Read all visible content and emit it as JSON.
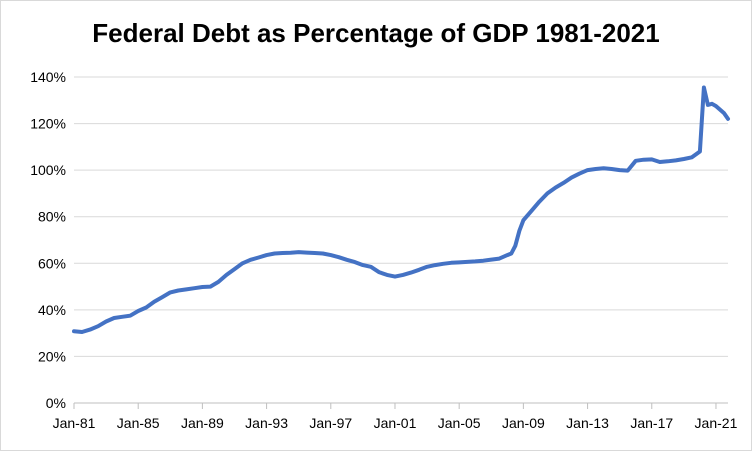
{
  "chart_data": {
    "type": "line",
    "title": "Federal Debt as Percentage of GDP 1981-2021",
    "xlabel": "",
    "ylabel": "",
    "x_tick_labels": [
      "Jan-81",
      "Jan-85",
      "Jan-89",
      "Jan-93",
      "Jan-97",
      "Jan-01",
      "Jan-05",
      "Jan-09",
      "Jan-13",
      "Jan-17",
      "Jan-21"
    ],
    "y_tick_labels": [
      "0%",
      "20%",
      "40%",
      "60%",
      "80%",
      "100%",
      "120%",
      "140%"
    ],
    "ylim": [
      0,
      140
    ],
    "y_ticks": [
      0,
      20,
      40,
      60,
      80,
      100,
      120,
      140
    ],
    "xlim": [
      1981.0,
      2021.75
    ],
    "x_ticks": [
      1981,
      1985,
      1989,
      1993,
      1997,
      2001,
      2005,
      2009,
      2013,
      2017,
      2021
    ],
    "grid": "horizontal",
    "legend": "none",
    "colors": {
      "line": "#4472c4",
      "grid": "#d9d9d9",
      "axis": "#bfbfbf"
    },
    "series": [
      {
        "x": [
          1981.0,
          1981.5,
          1982.0,
          1982.5,
          1983.0,
          1983.5,
          1984.0,
          1984.5,
          1985.0,
          1985.5,
          1986.0,
          1986.5,
          1987.0,
          1987.5,
          1988.0,
          1988.5,
          1989.0,
          1989.5,
          1990.0,
          1990.5,
          1991.0,
          1991.5,
          1992.0,
          1992.5,
          1993.0,
          1993.5,
          1994.0,
          1994.5,
          1995.0,
          1995.5,
          1996.0,
          1996.5,
          1997.0,
          1997.5,
          1998.0,
          1998.5,
          1999.0,
          1999.5,
          2000.0,
          2000.5,
          2001.0,
          2001.5,
          2002.0,
          2002.5,
          2003.0,
          2003.5,
          2004.0,
          2004.5,
          2005.0,
          2005.5,
          2006.0,
          2006.5,
          2007.0,
          2007.5,
          2008.0,
          2008.25,
          2008.5,
          2008.75,
          2009.0,
          2009.5,
          2010.0,
          2010.5,
          2011.0,
          2011.5,
          2012.0,
          2012.5,
          2013.0,
          2013.5,
          2014.0,
          2014.5,
          2015.0,
          2015.5,
          2016.0,
          2016.5,
          2017.0,
          2017.5,
          2018.0,
          2018.5,
          2019.0,
          2019.5,
          2020.0,
          2020.25,
          2020.5,
          2020.75,
          2021.0,
          2021.25,
          2021.5,
          2021.75
        ],
        "values": [
          30.8,
          30.5,
          31.5,
          33.0,
          35.0,
          36.5,
          37.0,
          37.5,
          39.5,
          41.0,
          43.5,
          45.5,
          47.5,
          48.3,
          48.8,
          49.3,
          49.8,
          50.0,
          52.0,
          55.0,
          57.5,
          60.0,
          61.5,
          62.5,
          63.5,
          64.2,
          64.4,
          64.5,
          64.8,
          64.6,
          64.4,
          64.2,
          63.5,
          62.6,
          61.5,
          60.5,
          59.2,
          58.5,
          56.2,
          55.0,
          54.3,
          55.0,
          56.0,
          57.2,
          58.5,
          59.2,
          59.8,
          60.2,
          60.4,
          60.6,
          60.8,
          61.1,
          61.6,
          62.0,
          63.5,
          64.2,
          67.5,
          74.0,
          78.5,
          82.5,
          86.5,
          90.0,
          92.5,
          94.5,
          96.8,
          98.5,
          100.0,
          100.5,
          100.8,
          100.5,
          100.0,
          99.8,
          104.0,
          104.5,
          104.6,
          103.5,
          103.8,
          104.2,
          104.8,
          105.5,
          108.0,
          135.5,
          128.0,
          128.5,
          127.5,
          126.0,
          124.5,
          122.0
        ]
      }
    ]
  }
}
